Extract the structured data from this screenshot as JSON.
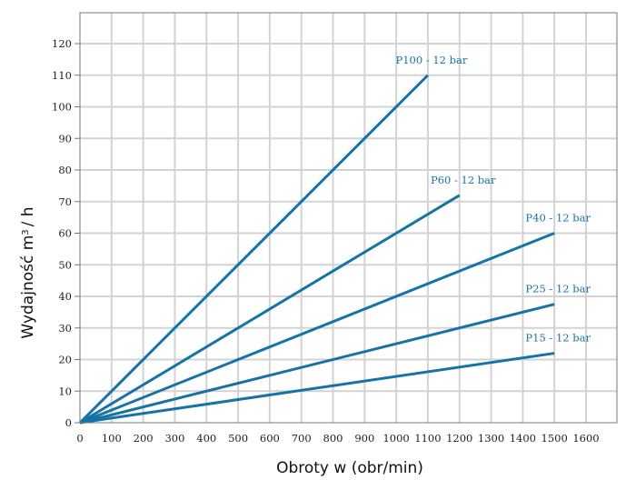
{
  "chart_data": {
    "type": "line",
    "title": "",
    "xlabel": "Obroty w (obr/min)",
    "ylabel": "Wydajność m",
    "ylabel_superscript": "3",
    "ylabel_suffix": "/ h",
    "xlim": [
      0,
      1700
    ],
    "ylim": [
      0,
      130
    ],
    "x_ticks": [
      0,
      100,
      200,
      300,
      400,
      500,
      600,
      700,
      800,
      900,
      1000,
      1100,
      1200,
      1300,
      1400,
      1500,
      1600
    ],
    "y_ticks": [
      0,
      10,
      20,
      30,
      40,
      50,
      60,
      70,
      80,
      90,
      100,
      110,
      120
    ],
    "grid": true,
    "legend": "inline labels at line ends",
    "line_color": "#1573a6",
    "label_color": "#1a73a8",
    "series": [
      {
        "name": "P100 - 12 bar",
        "x": [
          0,
          1100
        ],
        "y": [
          0,
          110
        ]
      },
      {
        "name": "P60 - 12 bar",
        "x": [
          0,
          1200
        ],
        "y": [
          0,
          72
        ]
      },
      {
        "name": "P40 - 12 bar",
        "x": [
          0,
          1500
        ],
        "y": [
          0,
          60
        ]
      },
      {
        "name": "P25 - 12 bar",
        "x": [
          0,
          1500
        ],
        "y": [
          0,
          37.5
        ]
      },
      {
        "name": "P15 - 12 bar",
        "x": [
          0,
          1500
        ],
        "y": [
          0,
          22
        ]
      }
    ]
  }
}
